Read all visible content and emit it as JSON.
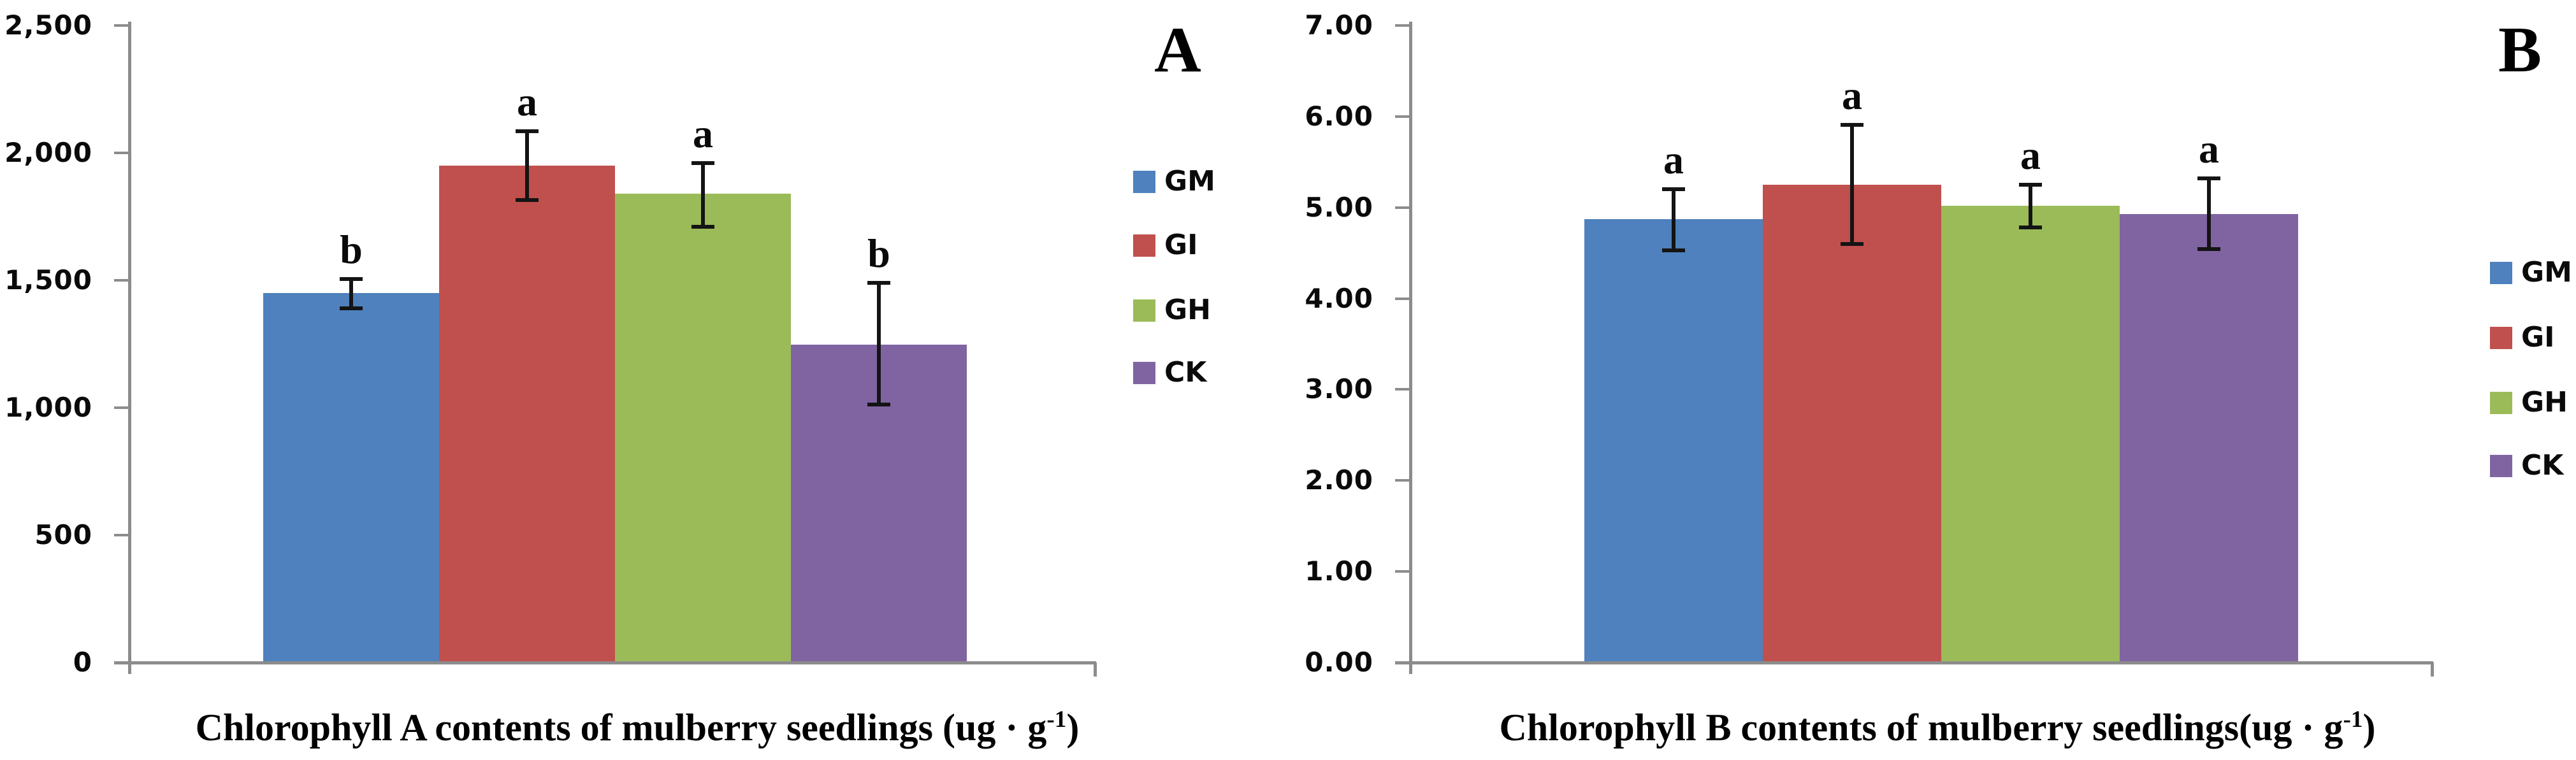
{
  "panels": [
    {
      "letter": "A",
      "title_main": "Chlorophyll A contents of mulberry seedlings (ug · g",
      "title_sup": "-1",
      "title_end": ")"
    },
    {
      "letter": "B",
      "title_main": "Chlorophyll B contents of mulberry seedlings(ug · g",
      "title_sup": "-1",
      "title_end": ")"
    }
  ],
  "legend_labels": [
    "GM",
    "GI",
    "GH",
    "CK"
  ],
  "colors": {
    "gm_blue": "#4E81BD",
    "gi_red": "#C0504D",
    "gh_green": "#9BBB59",
    "ck_purple": "#8064A2",
    "axis_gray": "#8C8C8C",
    "error_bar_black": "#141414"
  },
  "chart_data": [
    {
      "type": "bar",
      "panel": "A",
      "title": "Chlorophyll A contents of mulberry seedlings (ug · g-1)",
      "xlabel": "Chlorophyll A contents of mulberry seedlings (ug · g-1)",
      "ylabel": "",
      "categories": [
        "GM",
        "GI",
        "GH",
        "CK"
      ],
      "values": [
        1450,
        1950,
        1840,
        1248
      ],
      "error_upper": [
        1505,
        2085,
        1960,
        1490
      ],
      "error_lower": [
        1390,
        1815,
        1710,
        1012
      ],
      "sig_letters": [
        "b",
        "a",
        "a",
        "b"
      ],
      "bar_colors": [
        "#4E81BD",
        "#C0504D",
        "#9BBB59",
        "#8064A2"
      ],
      "ylim": [
        0,
        2500
      ],
      "ytick_step": 500,
      "y_tick_labels": [
        "0",
        "500",
        "1,000",
        "1,500",
        "2,000",
        "2,500"
      ],
      "grid": false,
      "legend_position": "right",
      "legend": [
        "GM",
        "GI",
        "GH",
        "CK"
      ]
    },
    {
      "type": "bar",
      "panel": "B",
      "title": "Chlorophyll B contents of mulberry seedlings(ug · g-1)",
      "xlabel": "Chlorophyll B contents of mulberry seedlings(ug · g-1)",
      "ylabel": "",
      "categories": [
        "GM",
        "GI",
        "GH",
        "CK"
      ],
      "values": [
        4.87,
        5.25,
        5.02,
        4.93
      ],
      "error_upper": [
        5.2,
        5.91,
        5.25,
        5.32
      ],
      "error_lower": [
        4.53,
        4.6,
        4.78,
        4.54
      ],
      "sig_letters": [
        "a",
        "a",
        "a",
        "a"
      ],
      "bar_colors": [
        "#4E81BD",
        "#C0504D",
        "#9BBB59",
        "#8064A2"
      ],
      "ylim": [
        0,
        7
      ],
      "ytick_step": 1,
      "y_tick_labels": [
        "0.00",
        "1.00",
        "2.00",
        "3.00",
        "4.00",
        "5.00",
        "6.00",
        "7.00"
      ],
      "grid": false,
      "legend_position": "right",
      "legend": [
        "GM",
        "GI",
        "GH",
        "CK"
      ]
    }
  ]
}
